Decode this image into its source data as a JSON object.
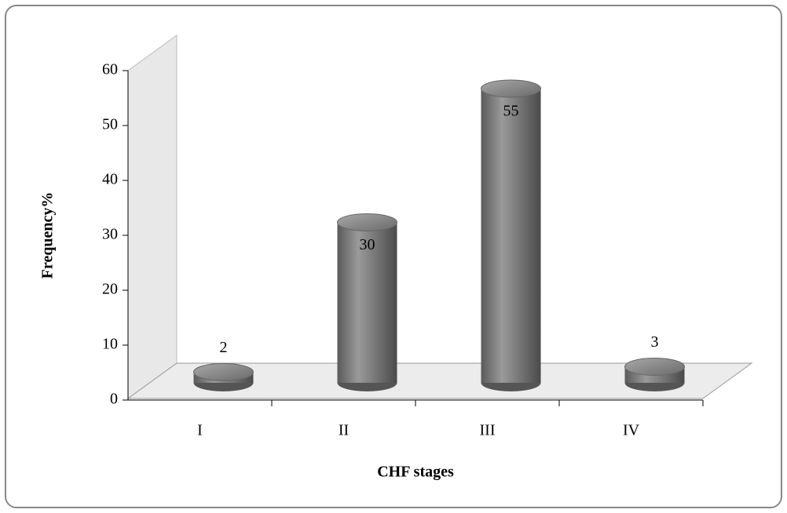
{
  "chart_data": {
    "type": "cylinder",
    "categories": [
      "I",
      "II",
      "III",
      "IV"
    ],
    "values": [
      2,
      30,
      55,
      3
    ],
    "color": "#7a7a7a",
    "ylim": [
      0,
      60
    ],
    "yticks": [
      0,
      10,
      20,
      30,
      40,
      50,
      60
    ],
    "y_label": "Frequency%",
    "x_label": "CHF stages"
  }
}
